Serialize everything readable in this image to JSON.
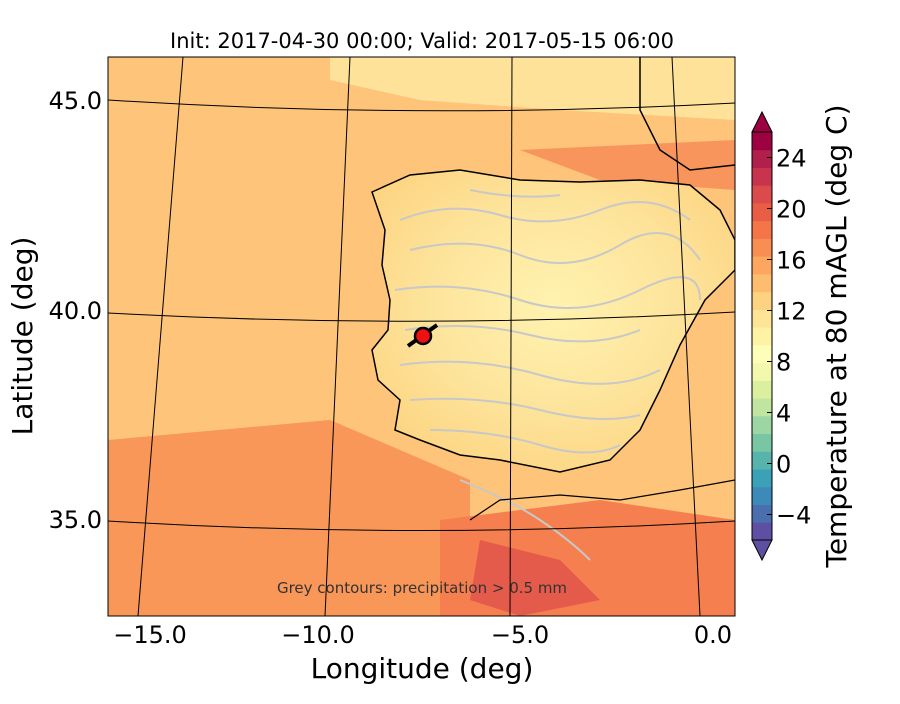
{
  "title": "Init: 2017-04-30 00:00; Valid: 2017-05-15 06:00",
  "xlabel": "Longitude (deg)",
  "ylabel": "Latitude (deg)",
  "annotation": "Grey contours: precipitation > 0.5 mm",
  "colorbar": {
    "label": "Temperature at 80 mAGL (deg C)",
    "min": -6,
    "max": 26,
    "ticks": [
      "−4",
      "0",
      "4",
      "8",
      "12",
      "16",
      "20",
      "24"
    ],
    "tick_values": [
      -4,
      0,
      4,
      8,
      12,
      16,
      20,
      24
    ],
    "colors": [
      "#5e4fa2",
      "#4a6fae",
      "#3d8ab8",
      "#3ba1b6",
      "#57b4ad",
      "#79c6a4",
      "#9cd6a4",
      "#bfe5a0",
      "#dbf09e",
      "#f2f9ac",
      "#fefeb9",
      "#fef3a5",
      "#fee495",
      "#fdd280",
      "#fdbd6e",
      "#fca65f",
      "#f98e52",
      "#f47548",
      "#ea5d45",
      "#dc4a4c",
      "#c8344d",
      "#b1204b",
      "#9e0142"
    ]
  },
  "x_ticks": [
    "−15.0",
    "−10.0",
    "−5.0",
    "0.0"
  ],
  "y_ticks": [
    "45.0",
    "40.0",
    "35.0"
  ],
  "marker": {
    "lat": 39.4,
    "lon": -7.6,
    "color": "#ee1111"
  },
  "chart_data": {
    "type": "map",
    "title": "Init: 2017-04-30 00:00; Valid: 2017-05-15 06:00",
    "xlabel": "Longitude (deg)",
    "ylabel": "Latitude (deg)",
    "xlim": [
      -16,
      0.3
    ],
    "ylim": [
      32.8,
      46.1
    ],
    "x_ticks": [
      -15,
      -10,
      -5,
      0
    ],
    "y_ticks": [
      35,
      40,
      45
    ],
    "colorbar_range": [
      -6,
      26
    ]
  }
}
